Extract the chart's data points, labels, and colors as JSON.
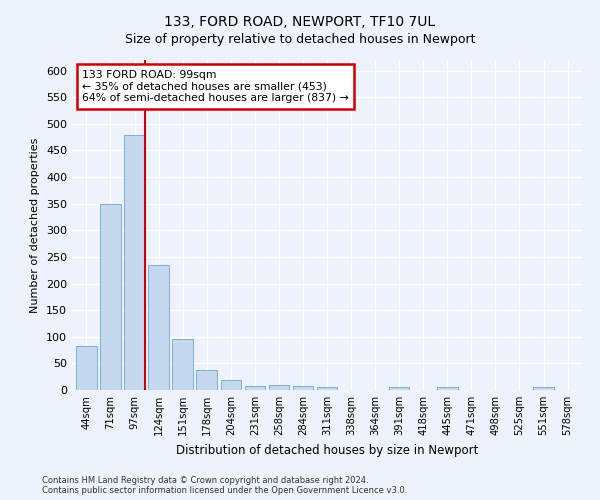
{
  "title1": "133, FORD ROAD, NEWPORT, TF10 7UL",
  "title2": "Size of property relative to detached houses in Newport",
  "xlabel": "Distribution of detached houses by size in Newport",
  "ylabel": "Number of detached properties",
  "bins": [
    "44sqm",
    "71sqm",
    "97sqm",
    "124sqm",
    "151sqm",
    "178sqm",
    "204sqm",
    "231sqm",
    "258sqm",
    "284sqm",
    "311sqm",
    "338sqm",
    "364sqm",
    "391sqm",
    "418sqm",
    "445sqm",
    "471sqm",
    "498sqm",
    "525sqm",
    "551sqm",
    "578sqm"
  ],
  "values": [
    83,
    350,
    480,
    235,
    96,
    37,
    18,
    8,
    9,
    8,
    5,
    0,
    0,
    6,
    0,
    6,
    0,
    0,
    0,
    6,
    0
  ],
  "bar_color": "#c5d8ef",
  "bar_edge_color": "#7aafd4",
  "vline_x_index": 2,
  "vline_color": "#cc0000",
  "annotation_line1": "133 FORD ROAD: 99sqm",
  "annotation_line2": "← 35% of detached houses are smaller (453)",
  "annotation_line3": "64% of semi-detached houses are larger (837) →",
  "annotation_box_color": "white",
  "annotation_box_edge": "#cc0000",
  "ylim": [
    0,
    620
  ],
  "yticks": [
    0,
    50,
    100,
    150,
    200,
    250,
    300,
    350,
    400,
    450,
    500,
    550,
    600
  ],
  "footer1": "Contains HM Land Registry data © Crown copyright and database right 2024.",
  "footer2": "Contains public sector information licensed under the Open Government Licence v3.0.",
  "bg_color": "#eef2fb",
  "title_fontsize": 10,
  "subtitle_fontsize": 9
}
